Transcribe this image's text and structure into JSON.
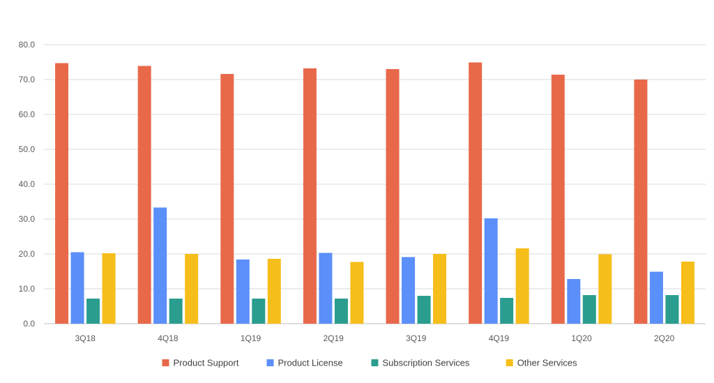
{
  "chart_data": {
    "type": "bar",
    "categories": [
      "3Q18",
      "4Q18",
      "1Q19",
      "2Q19",
      "3Q19",
      "4Q19",
      "1Q20",
      "2Q20"
    ],
    "series": [
      {
        "name": "Product Support",
        "color": "#E8694A",
        "values": [
          74.7,
          73.9,
          71.6,
          73.2,
          73.0,
          74.9,
          71.4,
          70.0
        ]
      },
      {
        "name": "Product License",
        "color": "#5B8FF9",
        "values": [
          20.5,
          33.3,
          18.4,
          20.3,
          19.1,
          30.2,
          12.8,
          14.9
        ]
      },
      {
        "name": "Subscription Services",
        "color": "#2A9D8F",
        "values": [
          7.2,
          7.2,
          7.2,
          7.2,
          8.0,
          7.4,
          8.2,
          8.2
        ]
      },
      {
        "name": "Other Services",
        "color": "#F6BE1A",
        "values": [
          20.2,
          20.0,
          18.6,
          17.7,
          20.0,
          21.6,
          19.9,
          17.8
        ]
      }
    ],
    "yticks": [
      "0.0",
      "10.0",
      "20.0",
      "30.0",
      "40.0",
      "50.0",
      "60.0",
      "70.0",
      "80.0"
    ],
    "ylim": [
      0,
      80
    ],
    "grid": true,
    "legend_position": "bottom-center"
  }
}
